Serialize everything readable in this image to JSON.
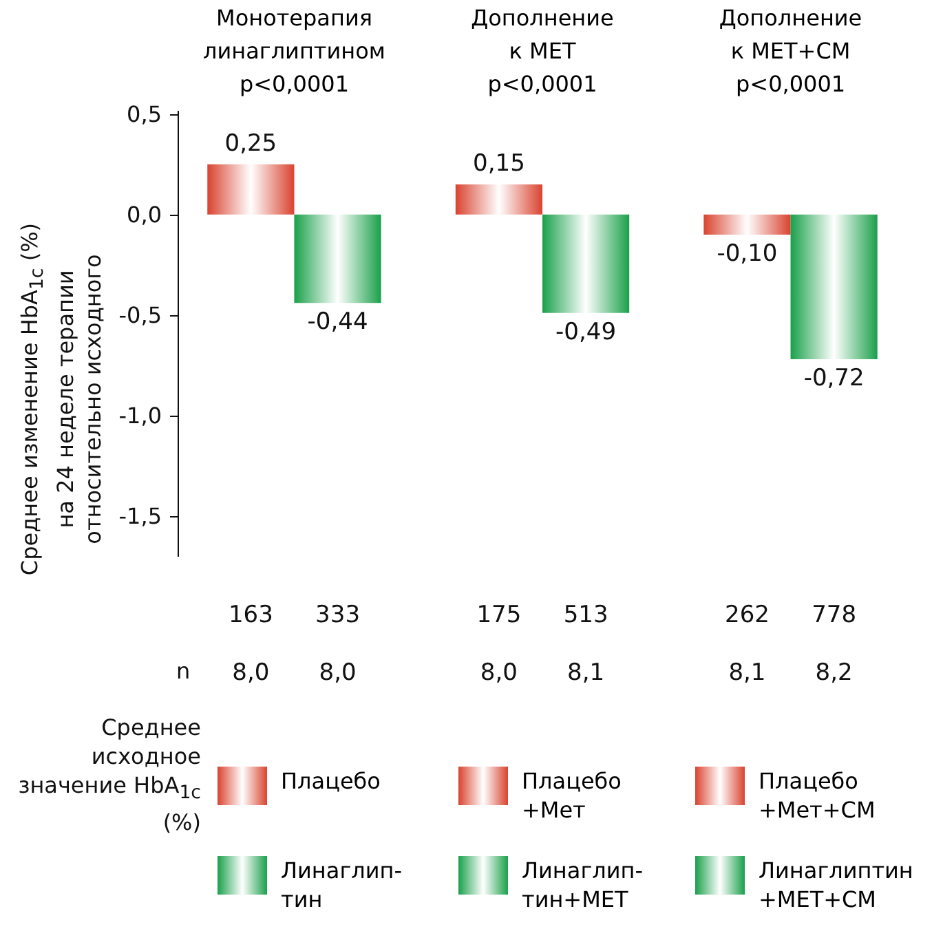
{
  "chart_data": {
    "type": "bar",
    "ylabel": "Среднее изменение HbA$_{1c}$ (%)\nна 24 неделе терапии\nотносительно исходного",
    "categories": [
      "Монотерапия\nлинаглиптином\np<0,0001",
      "Дополнение\nк МЕТ\np<0,0001",
      "Дополнение\nк МЕТ+СМ\np<0,0001"
    ],
    "series": [
      {
        "name": "Плацебо",
        "color": "#d9432f",
        "values": [
          0.25,
          null,
          null
        ],
        "value_labels": [
          "0,25",
          null,
          null
        ]
      },
      {
        "name": "Линаглип-\nтин",
        "color": "#1aa04a",
        "values": [
          -0.44,
          null,
          null
        ],
        "value_labels": [
          "-0,44",
          null,
          null
        ]
      },
      {
        "name": "Плацебо\n+Мет",
        "color": "#d9432f",
        "values": [
          null,
          0.15,
          null
        ],
        "value_labels": [
          null,
          "0,15",
          null
        ]
      },
      {
        "name": "Линаглип-\nтин+МЕТ",
        "color": "#1aa04a",
        "values": [
          null,
          -0.49,
          null
        ],
        "value_labels": [
          null,
          "-0,49",
          null
        ]
      },
      {
        "name": "Плацебо\n+Мет+СМ",
        "color": "#d9432f",
        "values": [
          null,
          null,
          -0.1
        ],
        "value_labels": [
          null,
          null,
          "-0,10"
        ]
      },
      {
        "name": "Линаглиптин\n+МЕТ+СМ",
        "color": "#1aa04a",
        "values": [
          null,
          null,
          -0.72
        ],
        "value_labels": [
          null,
          null,
          "-0,72"
        ]
      }
    ],
    "ylim": [
      -1.7,
      0.52
    ],
    "yticks": [
      {
        "value": 0.5,
        "label": "0,5"
      },
      {
        "value": 0,
        "label": "0,0"
      },
      {
        "value": -0.5,
        "label": "-0,5"
      },
      {
        "value": -1,
        "label": "-1,0"
      },
      {
        "value": -1.5,
        "label": "-1,5"
      }
    ],
    "grid": false,
    "legend": "bottom",
    "annotations": [
      "n",
      "163",
      "333",
      "175",
      "513",
      "262",
      "778",
      "Среднее исходное значение HbA$_{1c}$ (%)",
      "8,0",
      "8,0",
      "8,0",
      "8,1",
      "8,1",
      "8,2"
    ]
  }
}
